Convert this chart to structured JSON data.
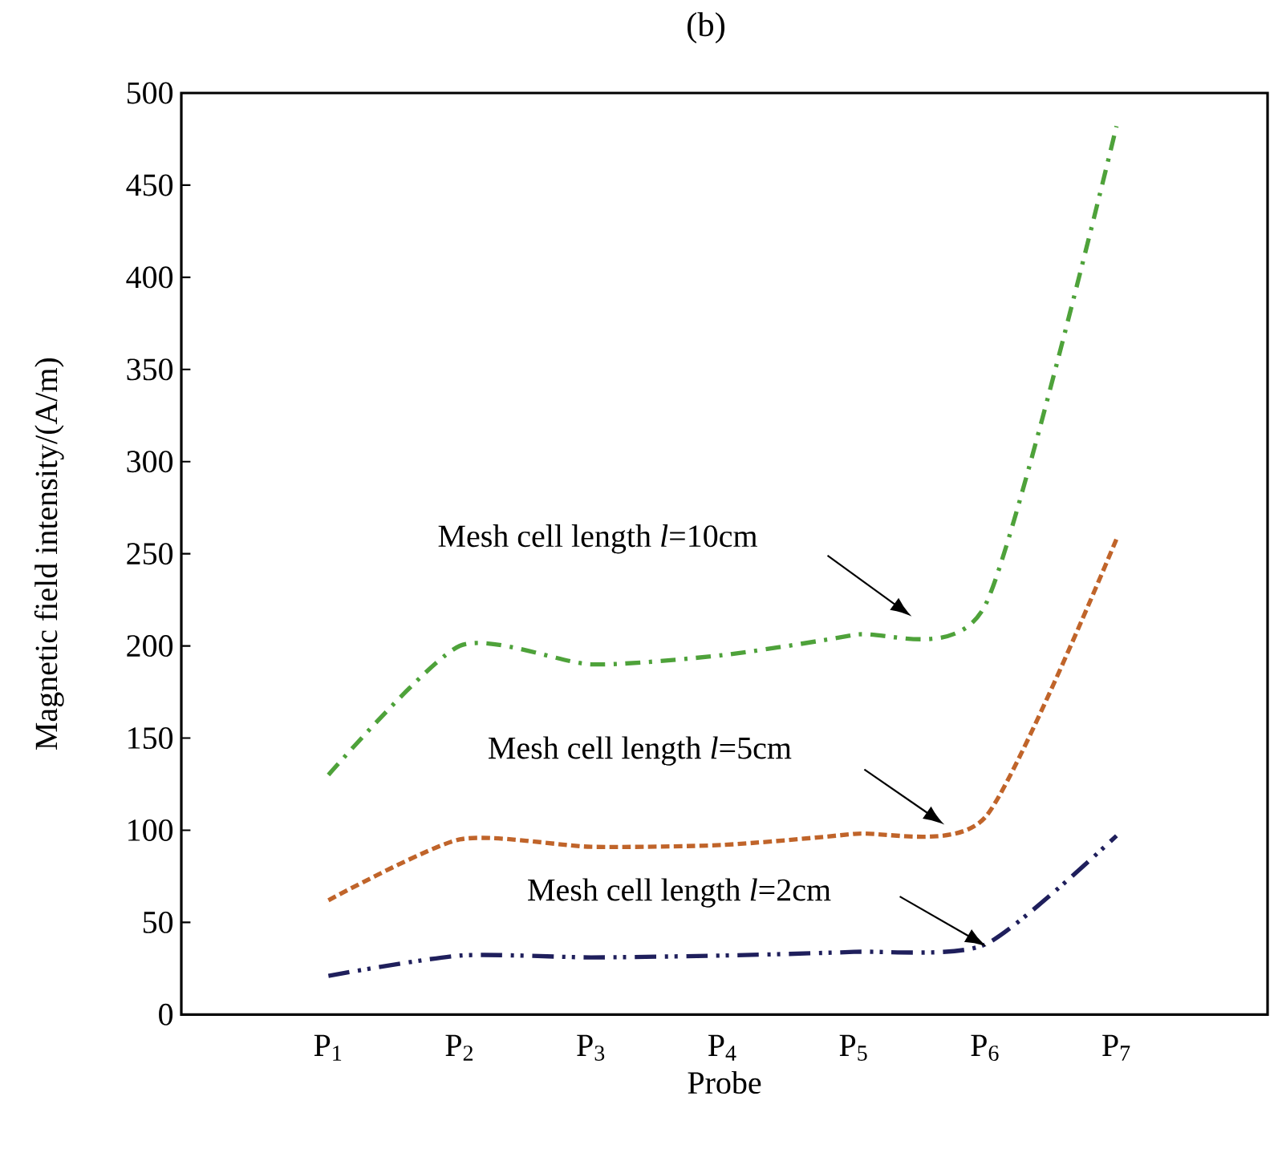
{
  "chart_data": {
    "type": "line",
    "title": "(b)",
    "xlabel": "Probe",
    "ylabel": "Magnetic field intensity/(A/m)",
    "categories": [
      "P$_{1}$",
      "P$_{2}$",
      "P$_{3}$",
      "P$_{4}$",
      "P$_{5}$",
      "P$_{6}$",
      "P$_{7}$"
    ],
    "series": [
      {
        "color": "#4ea23a",
        "line_style": "dashed",
        "values": [
          130,
          200,
          190,
          195,
          206,
          222,
          482
        ]
      },
      {
        "color": "#c0642a",
        "line_style": "dashed",
        "values": [
          62,
          95,
          91,
          92,
          98,
          107,
          258
        ]
      },
      {
        "color": "#1f1f5c",
        "line_style": "dashed",
        "values": [
          21,
          32,
          31,
          32,
          34,
          38,
          97
        ]
      }
    ],
    "annotations": [
      "Mesh cell length *l*=10cm",
      "Mesh cell length *l*=5cm",
      "Mesh cell length *l*=2cm"
    ],
    "ylim": [
      0,
      500
    ],
    "yticks": [
      0,
      50,
      100,
      150,
      200,
      250,
      300,
      350,
      400,
      450,
      500
    ],
    "grid": false,
    "marker": "none"
  }
}
